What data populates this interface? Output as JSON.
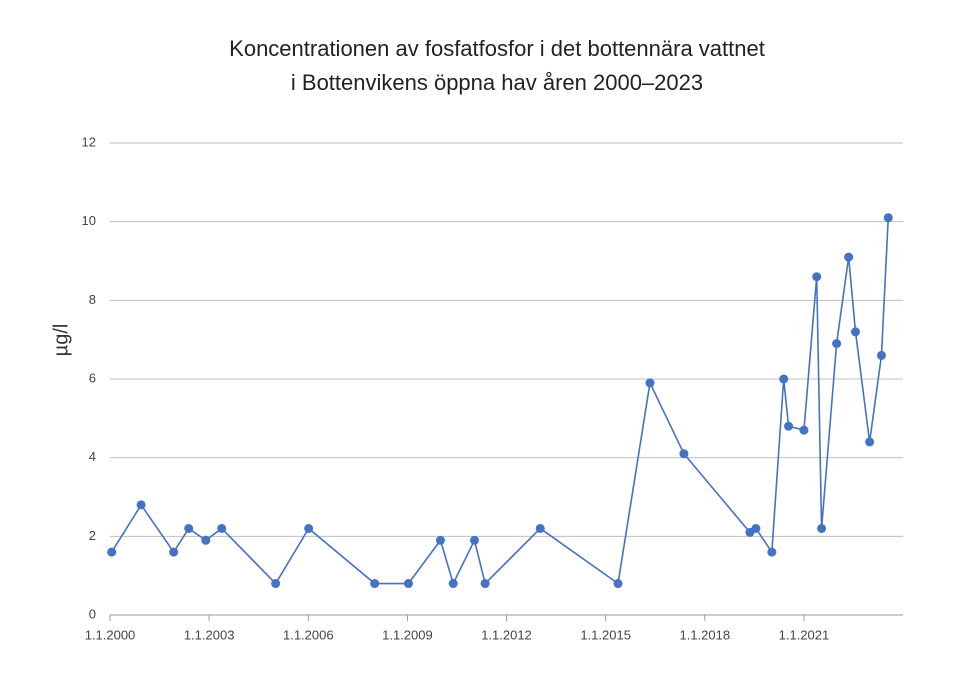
{
  "chart_data": {
    "type": "line",
    "title": [
      "Koncentrationen av fosfatfosfor i det bottennära vattnet",
      "i Bottenvikens öppna hav åren 2000–2023"
    ],
    "y_label": "µg/l",
    "x": [
      "2000-01-20",
      "2000-12-10",
      "2001-12-05",
      "2002-05-20",
      "2002-11-25",
      "2003-05-20",
      "2005-01-05",
      "2006-01-05",
      "2008-01-05",
      "2009-01-12",
      "2010-01-01",
      "2010-05-22",
      "2011-01-12",
      "2011-05-10",
      "2013-01-08",
      "2015-05-18",
      "2016-05-05",
      "2017-05-15",
      "2019-05-15",
      "2019-07-20",
      "2020-01-12",
      "2020-05-22",
      "2020-07-15",
      "2021-01-01",
      "2021-05-22",
      "2021-07-15",
      "2021-12-28",
      "2022-05-10",
      "2022-07-25",
      "2022-12-28",
      "2023-05-08",
      "2023-07-22"
    ],
    "series": [
      {
        "color": "#4472c4",
        "values": [
          1.6,
          2.8,
          1.6,
          2.2,
          1.9,
          2.2,
          0.8,
          2.2,
          0.8,
          0.8,
          1.9,
          0.8,
          1.9,
          0.8,
          2.2,
          0.8,
          5.9,
          4.1,
          2.1,
          2.2,
          1.6,
          6.0,
          4.8,
          4.7,
          8.6,
          2.2,
          6.9,
          9.1,
          7.2,
          4.4,
          6.6,
          10.1
        ]
      }
    ],
    "xlim": [
      "2000-01-01",
      "2024-01-01"
    ],
    "xticks": [
      {
        "value": "2000-01-01",
        "label": "1.1.2000"
      },
      {
        "value": "2003-01-01",
        "label": "1.1.2003"
      },
      {
        "value": "2006-01-01",
        "label": "1.1.2006"
      },
      {
        "value": "2009-01-01",
        "label": "1.1.2009"
      },
      {
        "value": "2012-01-01",
        "label": "1.1.2012"
      },
      {
        "value": "2015-01-01",
        "label": "1.1.2015"
      },
      {
        "value": "2018-01-01",
        "label": "1.1.2018"
      },
      {
        "value": "2021-01-01",
        "label": "1.1.2021"
      }
    ],
    "ylim": [
      0,
      12
    ],
    "yticks": [
      0,
      2,
      4,
      6,
      8,
      10,
      12
    ],
    "grid": true
  }
}
